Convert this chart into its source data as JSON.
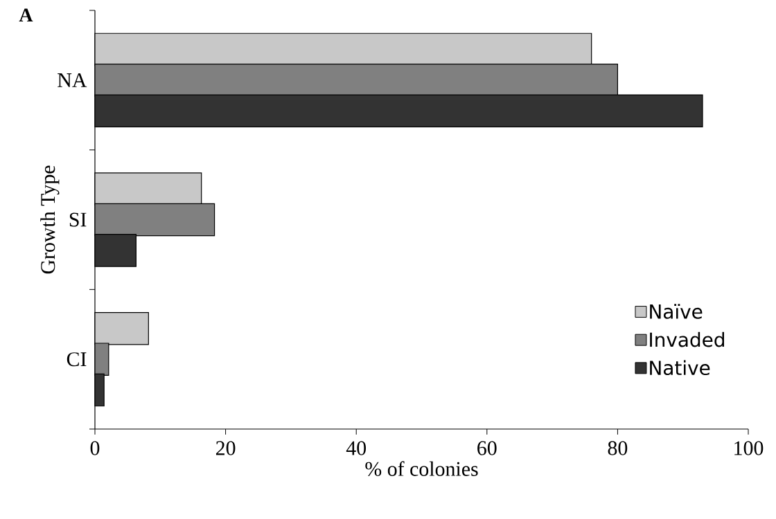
{
  "chart_data": {
    "type": "bar",
    "orientation": "horizontal",
    "title": "A",
    "xlabel": "% of colonies",
    "ylabel": "Growth Type",
    "categories": [
      "NA",
      "SI",
      "CI"
    ],
    "series": [
      {
        "name": "Naïve",
        "color": "#c8c8c8",
        "values": [
          76,
          16.3,
          8.2
        ]
      },
      {
        "name": "Invaded",
        "color": "#808080",
        "values": [
          80,
          18.3,
          2.1
        ]
      },
      {
        "name": "Native",
        "color": "#333333",
        "values": [
          93,
          6.3,
          1.4
        ]
      }
    ],
    "xlim": [
      0,
      100
    ],
    "xticks": [
      0,
      20,
      40,
      60,
      80,
      100
    ],
    "grid": false,
    "legend": "right"
  }
}
